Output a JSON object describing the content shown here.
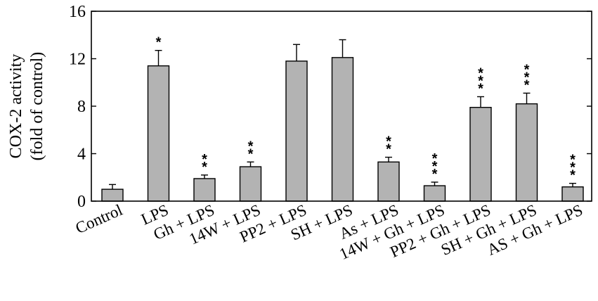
{
  "chart_data": {
    "type": "bar",
    "title": "",
    "xlabel": "",
    "ylabel_lines": [
      "COX-2 activity",
      "(fold of control)"
    ],
    "ylim": [
      0,
      16
    ],
    "yticks": [
      0,
      4,
      8,
      12,
      16
    ],
    "grid": false,
    "bar_color": "#b3b3b3",
    "categories": [
      "Control",
      "LPS",
      "Gh + LPS",
      "14W + LPS",
      "PP2 + LPS",
      "SH + LPS",
      "As + LPS",
      "14W + Gh + LPS",
      "PP2 + Gh + LPS",
      "SH + Gh + LPS",
      "AS + Gh + LPS"
    ],
    "values": [
      1.0,
      11.4,
      1.9,
      2.9,
      11.8,
      12.1,
      3.3,
      1.3,
      7.9,
      8.2,
      1.2
    ],
    "errors": [
      0.4,
      1.3,
      0.3,
      0.4,
      1.4,
      1.5,
      0.4,
      0.3,
      0.9,
      0.9,
      0.3
    ],
    "significance": [
      "",
      "*",
      "**",
      "**",
      "",
      "",
      "**",
      "***",
      "***",
      "***",
      "***"
    ]
  }
}
